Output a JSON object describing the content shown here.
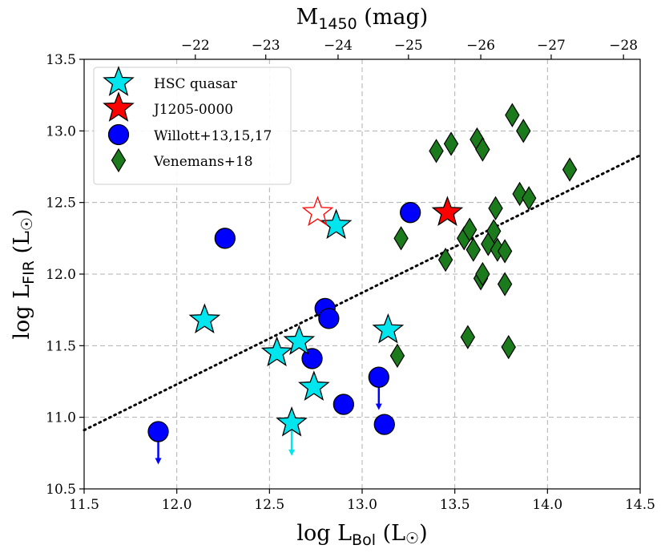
{
  "chart_data": {
    "type": "scatter",
    "x_axis": {
      "label_main": "log L",
      "label_sub": "Bol",
      "label_unit": " (L",
      "label_sun": "☉",
      "label_close": ")",
      "range": [
        11.5,
        14.5
      ],
      "ticks": [
        11.5,
        12.0,
        12.5,
        13.0,
        13.5,
        14.0,
        14.5
      ],
      "tick_labels": [
        "11.5",
        "12.0",
        "12.5",
        "13.0",
        "13.5",
        "14.0",
        "14.5"
      ]
    },
    "y_axis": {
      "label_main": "log L",
      "label_sub": "FIR",
      "label_unit": " (L",
      "label_sun": "☉",
      "label_close": ")",
      "range": [
        10.5,
        13.5
      ],
      "ticks": [
        10.5,
        11.0,
        11.5,
        12.0,
        12.5,
        13.0,
        13.5
      ],
      "tick_labels": [
        "10.5",
        "11.0",
        "11.5",
        "12.0",
        "12.5",
        "13.0",
        "13.5"
      ]
    },
    "top_axis": {
      "label_main": "M",
      "label_sub": "1450",
      "label_unit": " (mag)",
      "ticks": [
        -22,
        -23,
        -24,
        -25,
        -26,
        -27,
        -28
      ],
      "tick_labels": [
        "−22",
        "−23",
        "−24",
        "−25",
        "−26",
        "−27",
        "−28"
      ],
      "lbol_at_tick": [
        12.1,
        12.48,
        12.87,
        13.25,
        13.64,
        14.02,
        14.41
      ]
    },
    "grid": true,
    "fit_line": {
      "style": "dotted",
      "points": [
        [
          11.5,
          10.91
        ],
        [
          14.5,
          12.83
        ]
      ]
    },
    "legend": {
      "placement": "top-left",
      "entries": [
        "HSC quasar",
        "J1205-0000",
        "Willott+13,15,17",
        "Venemans+18"
      ]
    },
    "series": [
      {
        "name": "HSC quasar",
        "marker": "star",
        "color": "#00e5ee",
        "points": [
          {
            "x": 12.15,
            "y": 11.68
          },
          {
            "x": 12.54,
            "y": 11.45
          },
          {
            "x": 12.66,
            "y": 11.53
          },
          {
            "x": 12.74,
            "y": 11.21
          },
          {
            "x": 12.62,
            "y": 10.96,
            "upper_limit": true
          },
          {
            "x": 12.86,
            "y": 12.34
          },
          {
            "x": 13.14,
            "y": 11.61
          }
        ]
      },
      {
        "name": "J1205-0000",
        "marker": "star",
        "color": "#ff0000",
        "points": [
          {
            "x": 13.46,
            "y": 12.43
          },
          {
            "x": 12.76,
            "y": 12.43,
            "hollow": true
          }
        ]
      },
      {
        "name": "Willott+13,15,17",
        "marker": "circle",
        "color": "#0000ff",
        "points": [
          {
            "x": 11.9,
            "y": 10.9,
            "upper_limit": true
          },
          {
            "x": 12.26,
            "y": 12.25
          },
          {
            "x": 12.8,
            "y": 11.76
          },
          {
            "x": 12.82,
            "y": 11.69
          },
          {
            "x": 12.73,
            "y": 11.41
          },
          {
            "x": 12.9,
            "y": 11.09
          },
          {
            "x": 13.09,
            "y": 11.28,
            "upper_limit": true
          },
          {
            "x": 13.12,
            "y": 10.95
          },
          {
            "x": 13.26,
            "y": 12.43
          }
        ]
      },
      {
        "name": "Venemans+18",
        "marker": "diamond",
        "color": "#1b7a1b",
        "points": [
          {
            "x": 13.21,
            "y": 12.25
          },
          {
            "x": 13.19,
            "y": 11.43
          },
          {
            "x": 13.4,
            "y": 12.86
          },
          {
            "x": 13.48,
            "y": 12.91
          },
          {
            "x": 13.45,
            "y": 12.1
          },
          {
            "x": 13.55,
            "y": 12.25
          },
          {
            "x": 13.58,
            "y": 12.31
          },
          {
            "x": 13.6,
            "y": 12.17
          },
          {
            "x": 13.57,
            "y": 11.56
          },
          {
            "x": 13.62,
            "y": 12.94
          },
          {
            "x": 13.65,
            "y": 12.87
          },
          {
            "x": 13.64,
            "y": 11.97
          },
          {
            "x": 13.65,
            "y": 12.0
          },
          {
            "x": 13.68,
            "y": 12.21
          },
          {
            "x": 13.71,
            "y": 12.3
          },
          {
            "x": 13.72,
            "y": 12.46
          },
          {
            "x": 13.73,
            "y": 12.17
          },
          {
            "x": 13.77,
            "y": 12.16
          },
          {
            "x": 13.77,
            "y": 11.93
          },
          {
            "x": 13.79,
            "y": 11.49
          },
          {
            "x": 13.81,
            "y": 13.11
          },
          {
            "x": 13.85,
            "y": 12.56
          },
          {
            "x": 13.87,
            "y": 13.0
          },
          {
            "x": 13.9,
            "y": 12.53
          },
          {
            "x": 14.12,
            "y": 12.73
          }
        ]
      }
    ]
  }
}
